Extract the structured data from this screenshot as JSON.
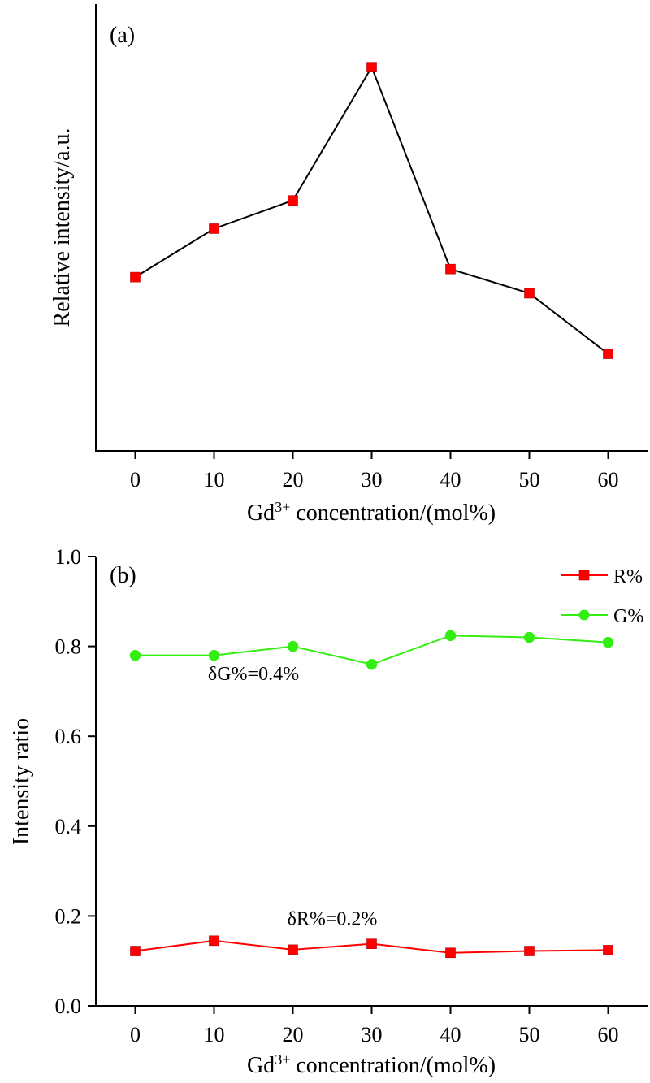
{
  "chart_data": [
    {
      "type": "line",
      "panel": "(a)",
      "xlabel": {
        "base": "Gd",
        "sup": "3+",
        "rest": " concentration/(mol%)"
      },
      "ylabel": "Relative intensity/a.u.",
      "x": [
        0,
        10,
        20,
        30,
        40,
        50,
        60
      ],
      "xlim": [
        -5,
        65
      ],
      "ylim": [
        0,
        1
      ],
      "y_ticks_shown": false,
      "series": [
        {
          "values": [
            0.37,
            0.49,
            0.56,
            0.89,
            0.39,
            0.33,
            0.18
          ],
          "line_color": "#000000",
          "marker": "square",
          "marker_color": "#ff0000"
        }
      ]
    },
    {
      "type": "line",
      "panel": "(b)",
      "xlabel": {
        "base": "Gd",
        "sup": "3+",
        "rest": " concentration/(mol%)"
      },
      "ylabel": "Intensity ratio",
      "x": [
        0,
        10,
        20,
        30,
        40,
        50,
        60
      ],
      "xlim": [
        -5,
        65
      ],
      "ylim": [
        0,
        1
      ],
      "yticks": [
        "0.0",
        "0.2",
        "0.4",
        "0.6",
        "0.8",
        "1.0"
      ],
      "legend_position": "top-right",
      "series": [
        {
          "name": "R%",
          "values": [
            0.122,
            0.145,
            0.125,
            0.138,
            0.118,
            0.122,
            0.124
          ],
          "color": "#ff0000",
          "marker": "square"
        },
        {
          "name": "G%",
          "values": [
            0.78,
            0.78,
            0.8,
            0.76,
            0.824,
            0.82,
            0.809
          ],
          "color": "#33ee11",
          "marker": "circle"
        }
      ],
      "annotations": [
        {
          "text": "δG%=0.4%",
          "x": 15,
          "y": 0.725
        },
        {
          "text": "δR%=0.2%",
          "x": 25,
          "y": 0.18
        }
      ]
    }
  ]
}
